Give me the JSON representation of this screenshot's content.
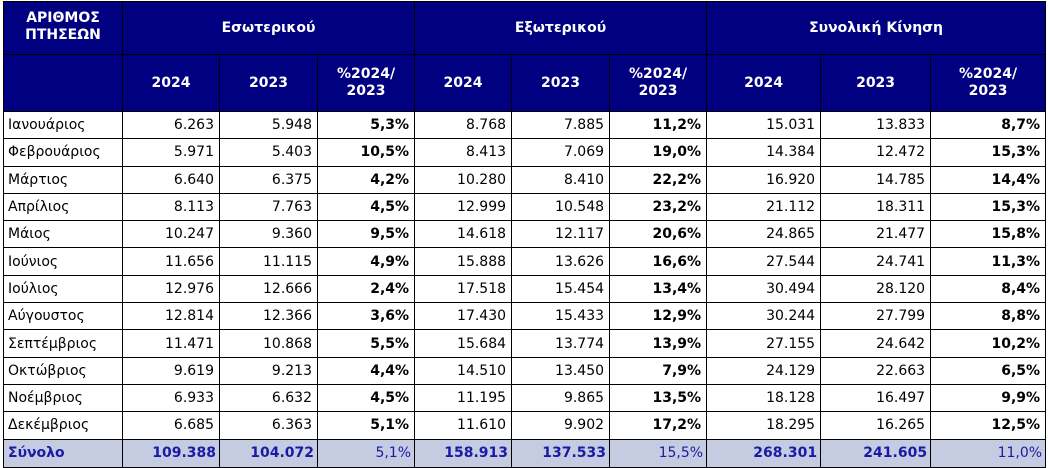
{
  "header": {
    "corner_line1": "ΑΡΙΘΜΟΣ",
    "corner_line2": "ΠΤΗΣΕΩΝ",
    "groups": [
      "Εσωτερικού",
      "Εξωτερικού",
      "Συνολική Κίνηση"
    ],
    "year_2024": "2024",
    "year_2023": "2023",
    "pct_line1": "%2024/",
    "pct_line2": "2023"
  },
  "rows": [
    {
      "month": "Ιανουάριος",
      "dom": [
        "6.263",
        "5.948",
        "5,3%"
      ],
      "intl": [
        "8.768",
        "7.885",
        "11,2%"
      ],
      "total": [
        "15.031",
        "13.833",
        "8,7%"
      ]
    },
    {
      "month": "Φεβρουάριος",
      "dom": [
        "5.971",
        "5.403",
        "10,5%"
      ],
      "intl": [
        "8.413",
        "7.069",
        "19,0%"
      ],
      "total": [
        "14.384",
        "12.472",
        "15,3%"
      ]
    },
    {
      "month": "Μάρτιος",
      "dom": [
        "6.640",
        "6.375",
        "4,2%"
      ],
      "intl": [
        "10.280",
        "8.410",
        "22,2%"
      ],
      "total": [
        "16.920",
        "14.785",
        "14,4%"
      ]
    },
    {
      "month": "Απρίλιος",
      "dom": [
        "8.113",
        "7.763",
        "4,5%"
      ],
      "intl": [
        "12.999",
        "10.548",
        "23,2%"
      ],
      "total": [
        "21.112",
        "18.311",
        "15,3%"
      ]
    },
    {
      "month": "Μάιος",
      "dom": [
        "10.247",
        "9.360",
        "9,5%"
      ],
      "intl": [
        "14.618",
        "12.117",
        "20,6%"
      ],
      "total": [
        "24.865",
        "21.477",
        "15,8%"
      ]
    },
    {
      "month": "Ιούνιος",
      "dom": [
        "11.656",
        "11.115",
        "4,9%"
      ],
      "intl": [
        "15.888",
        "13.626",
        "16,6%"
      ],
      "total": [
        "27.544",
        "24.741",
        "11,3%"
      ]
    },
    {
      "month": "Ιούλιος",
      "dom": [
        "12.976",
        "12.666",
        "2,4%"
      ],
      "intl": [
        "17.518",
        "15.454",
        "13,4%"
      ],
      "total": [
        "30.494",
        "28.120",
        "8,4%"
      ]
    },
    {
      "month": "Αύγουστος",
      "dom": [
        "12.814",
        "12.366",
        "3,6%"
      ],
      "intl": [
        "17.430",
        "15.433",
        "12,9%"
      ],
      "total": [
        "30.244",
        "27.799",
        "8,8%"
      ]
    },
    {
      "month": "Σεπτέμβριος",
      "dom": [
        "11.471",
        "10.868",
        "5,5%"
      ],
      "intl": [
        "15.684",
        "13.774",
        "13,9%"
      ],
      "total": [
        "27.155",
        "24.642",
        "10,2%"
      ]
    },
    {
      "month": "Οκτώβριος",
      "dom": [
        "9.619",
        "9.213",
        "4,4%"
      ],
      "intl": [
        "14.510",
        "13.450",
        "7,9%"
      ],
      "total": [
        "24.129",
        "22.663",
        "6,5%"
      ]
    },
    {
      "month": "Νοέμβριος",
      "dom": [
        "6.933",
        "6.632",
        "4,5%"
      ],
      "intl": [
        "11.195",
        "9.865",
        "13,5%"
      ],
      "total": [
        "18.128",
        "16.497",
        "9,9%"
      ]
    },
    {
      "month": "Δεκέμβριος",
      "dom": [
        "6.685",
        "6.363",
        "5,1%"
      ],
      "intl": [
        "11.610",
        "9.902",
        "17,2%"
      ],
      "total": [
        "18.295",
        "16.265",
        "12,5%"
      ]
    }
  ],
  "footer": {
    "label": "Σύνολο",
    "dom": [
      "109.388",
      "104.072",
      "5,1%"
    ],
    "intl": [
      "158.913",
      "137.533",
      "15,5%"
    ],
    "total": [
      "268.301",
      "241.605",
      "11,0%"
    ]
  },
  "colors": {
    "header_bg": "#000080",
    "header_text": "#ffffff",
    "footer_bg": "#c5cbe0",
    "footer_text": "#1a1aa6"
  }
}
